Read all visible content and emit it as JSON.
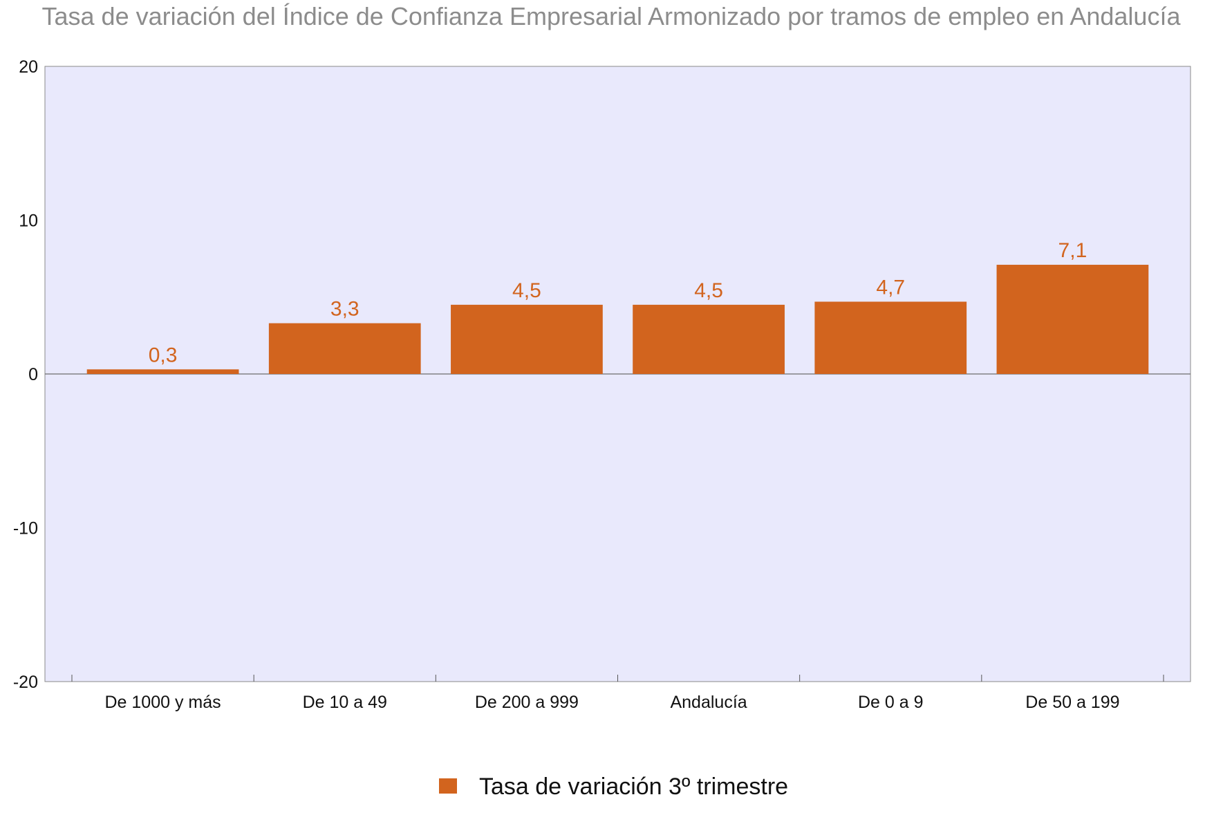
{
  "chart_data": {
    "type": "bar",
    "title": "Tasa de variación del Índice de Confianza Empresarial Armonizado por tramos de empleo en Andalucía",
    "categories": [
      "De 1000 y más",
      "De 10 a 49",
      "De 200 a 999",
      "Andalucía",
      "De 0 a 9",
      "De 50 a 199"
    ],
    "series": [
      {
        "name": "Tasa de variación 3º trimestre",
        "values": [
          0.3,
          3.3,
          4.5,
          4.5,
          4.7,
          7.1
        ],
        "value_labels": [
          "0,3",
          "3,3",
          "4,5",
          "4,5",
          "4,7",
          "7,1"
        ],
        "color": "#d2641e"
      }
    ],
    "ylim": [
      -20,
      20
    ],
    "yticks": [
      20,
      10,
      0,
      -10,
      -20
    ],
    "xlabel": "",
    "ylabel": "",
    "plot_background": "#e9e9fc",
    "grid": false,
    "legend_position": "bottom"
  }
}
